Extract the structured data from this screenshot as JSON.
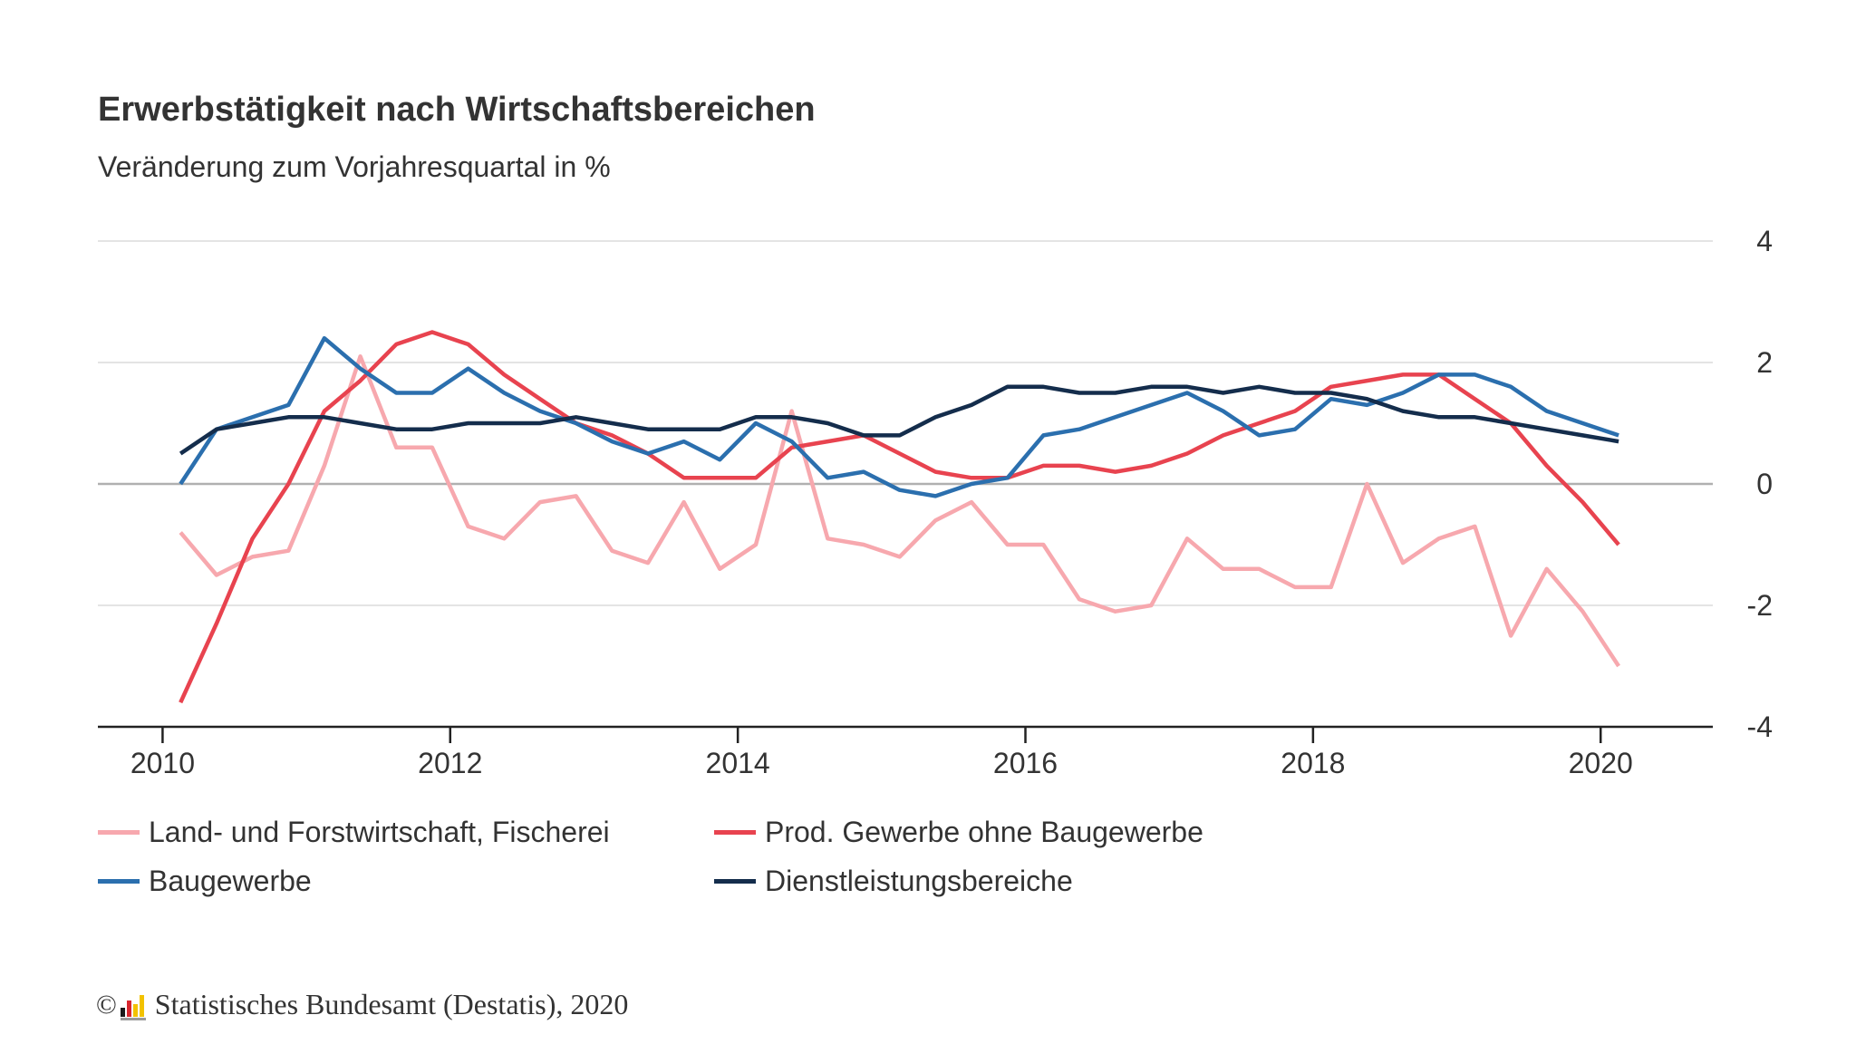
{
  "title": "Erwerbstätigkeit nach Wirtschaftsbereichen",
  "subtitle": "Veränderung zum Vorjahresquartal in %",
  "footer": {
    "copyright_symbol": "©",
    "source": "Statistisches Bundesamt (Destatis), 2020"
  },
  "colors": {
    "grid": "#dcdcdc",
    "zero_line": "#b0b0b0",
    "axis": "#222222",
    "text": "#333333"
  },
  "chart_data": {
    "type": "line",
    "title": "Erwerbstätigkeit nach Wirtschaftsbereichen",
    "subtitle": "Veränderung zum Vorjahresquartal in %",
    "xlabel": "",
    "ylabel": "",
    "xlim": [
      2009.55,
      2020.78
    ],
    "ylim": [
      -4,
      4
    ],
    "x_ticks": [
      2010,
      2012,
      2014,
      2016,
      2018,
      2020
    ],
    "x_tick_labels": [
      "2010",
      "2012",
      "2014",
      "2016",
      "2018",
      "2020"
    ],
    "y_ticks": [
      4,
      2,
      0,
      -2,
      -4
    ],
    "y_tick_labels": [
      "4",
      "2",
      "0",
      "-2",
      "-4"
    ],
    "y_axis_side": "right",
    "grid": true,
    "legend_position": "bottom",
    "x": [
      2010.125,
      2010.375,
      2010.625,
      2010.875,
      2011.125,
      2011.375,
      2011.625,
      2011.875,
      2012.125,
      2012.375,
      2012.625,
      2012.875,
      2013.125,
      2013.375,
      2013.625,
      2013.875,
      2014.125,
      2014.375,
      2014.625,
      2014.875,
      2015.125,
      2015.375,
      2015.625,
      2015.875,
      2016.125,
      2016.375,
      2016.625,
      2016.875,
      2017.125,
      2017.375,
      2017.625,
      2017.875,
      2018.125,
      2018.375,
      2018.625,
      2018.875,
      2019.125,
      2019.375,
      2019.625,
      2019.875,
      2020.125
    ],
    "series": [
      {
        "name": "Land- und Forstwirtschaft, Fischerei",
        "color": "#f7a8ae",
        "values": [
          -0.8,
          -1.5,
          -1.2,
          -1.1,
          0.3,
          2.1,
          0.6,
          0.6,
          -0.7,
          -0.9,
          -0.3,
          -0.2,
          -1.1,
          -1.3,
          -0.3,
          -1.4,
          -1.0,
          1.2,
          -0.9,
          -1.0,
          -1.2,
          -0.6,
          -0.3,
          -1.0,
          -1.0,
          -1.9,
          -2.1,
          -2.0,
          -0.9,
          -1.4,
          -1.4,
          -1.7,
          -1.7,
          0.0,
          -1.3,
          -0.9,
          -0.7,
          -2.5,
          -1.4,
          -2.1,
          -3.0
        ]
      },
      {
        "name": "Prod. Gewerbe ohne Baugewerbe",
        "color": "#e8434f",
        "values": [
          -3.6,
          -2.3,
          -0.9,
          0.0,
          1.2,
          1.7,
          2.3,
          2.5,
          2.3,
          1.8,
          1.4,
          1.0,
          0.8,
          0.5,
          0.1,
          0.1,
          0.1,
          0.6,
          0.7,
          0.8,
          0.5,
          0.2,
          0.1,
          0.1,
          0.3,
          0.3,
          0.2,
          0.3,
          0.5,
          0.8,
          1.0,
          1.2,
          1.6,
          1.7,
          1.8,
          1.8,
          1.4,
          1.0,
          0.3,
          -0.3,
          -1.0
        ]
      },
      {
        "name": "Baugewerbe",
        "color": "#2b6fae",
        "values": [
          0.0,
          0.9,
          1.1,
          1.3,
          2.4,
          1.9,
          1.5,
          1.5,
          1.9,
          1.5,
          1.2,
          1.0,
          0.7,
          0.5,
          0.7,
          0.4,
          1.0,
          0.7,
          0.1,
          0.2,
          -0.1,
          -0.2,
          0.0,
          0.1,
          0.8,
          0.9,
          1.1,
          1.3,
          1.5,
          1.2,
          0.8,
          0.9,
          1.4,
          1.3,
          1.5,
          1.8,
          1.8,
          1.6,
          1.2,
          1.0,
          0.8
        ]
      },
      {
        "name": "Dienstleistungsbereiche",
        "color": "#142d4c",
        "values": [
          0.5,
          0.9,
          1.0,
          1.1,
          1.1,
          1.0,
          0.9,
          0.9,
          1.0,
          1.0,
          1.0,
          1.1,
          1.0,
          0.9,
          0.9,
          0.9,
          1.1,
          1.1,
          1.0,
          0.8,
          0.8,
          1.1,
          1.3,
          1.6,
          1.6,
          1.5,
          1.5,
          1.6,
          1.6,
          1.5,
          1.6,
          1.5,
          1.5,
          1.4,
          1.2,
          1.1,
          1.1,
          1.0,
          0.9,
          0.8,
          0.7
        ]
      }
    ]
  },
  "legend": [
    {
      "label": "Land- und Forstwirtschaft, Fischerei",
      "color": "#f7a8ae"
    },
    {
      "label": "Prod. Gewerbe ohne Baugewerbe",
      "color": "#e8434f"
    },
    {
      "label": "Baugewerbe",
      "color": "#2b6fae"
    },
    {
      "label": "Dienstleistungsbereiche",
      "color": "#142d4c"
    }
  ]
}
